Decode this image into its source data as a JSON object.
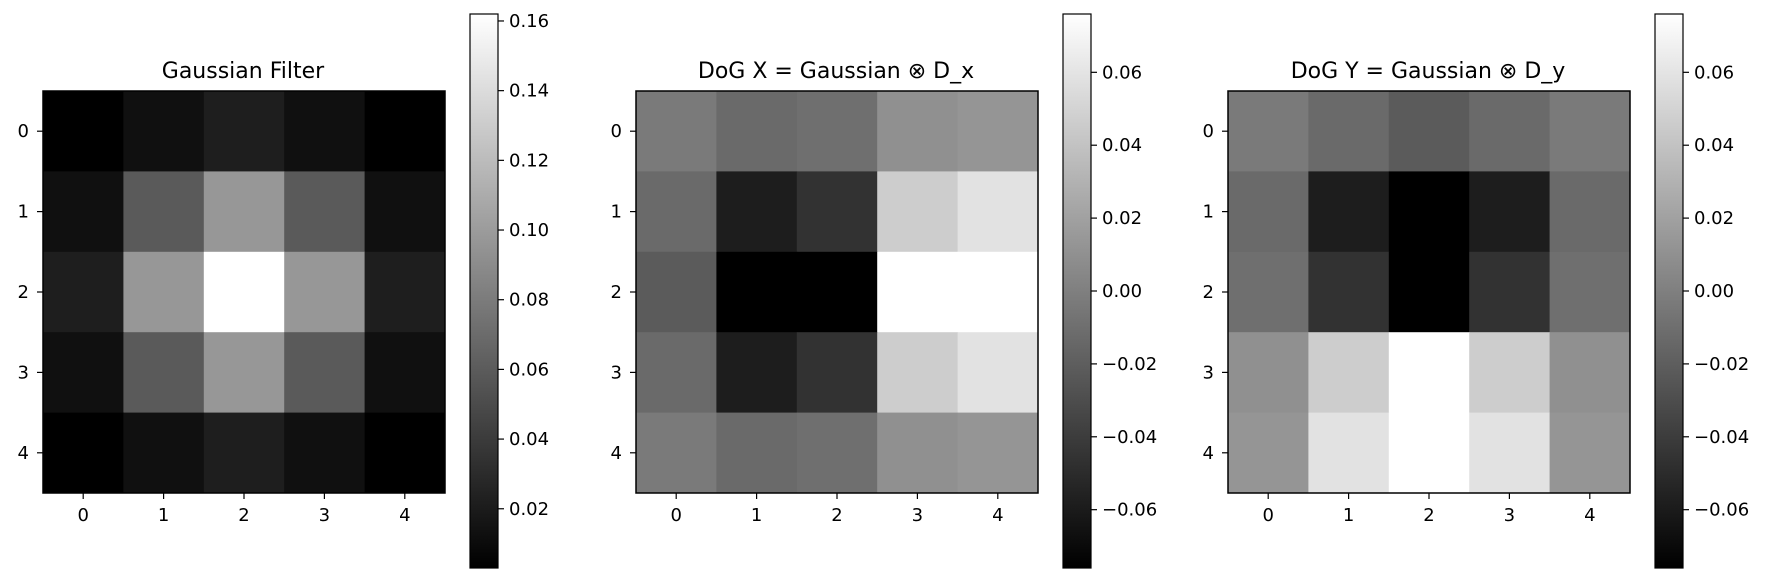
{
  "chart_data": [
    {
      "type": "heatmap",
      "title": "Gaussian Filter",
      "colormap": "gray",
      "x_ticks": [
        "0",
        "1",
        "2",
        "3",
        "4"
      ],
      "y_ticks": [
        "0",
        "1",
        "2",
        "3",
        "4"
      ],
      "values": [
        [
          0.003,
          0.013,
          0.022,
          0.013,
          0.003
        ],
        [
          0.013,
          0.059,
          0.097,
          0.059,
          0.013
        ],
        [
          0.022,
          0.097,
          0.162,
          0.097,
          0.022
        ],
        [
          0.013,
          0.059,
          0.097,
          0.059,
          0.013
        ],
        [
          0.003,
          0.013,
          0.022,
          0.013,
          0.003
        ]
      ],
      "colorbar": {
        "range": [
          0.003,
          0.162
        ],
        "ticks": [
          0.02,
          0.04,
          0.06,
          0.08,
          0.1,
          0.12,
          0.14,
          0.16
        ],
        "tick_labels": [
          "0.02",
          "0.04",
          "0.06",
          "0.08",
          "0.10",
          "0.12",
          "0.14",
          "0.16"
        ]
      }
    },
    {
      "type": "heatmap",
      "title": "DoG X = Gaussian ⊗ D_x",
      "colormap": "gray",
      "x_ticks": [
        "0",
        "1",
        "2",
        "3",
        "4"
      ],
      "y_ticks": [
        "0",
        "1",
        "2",
        "3",
        "4"
      ],
      "values": [
        [
          -0.003,
          -0.013,
          -0.01,
          0.01,
          0.013
        ],
        [
          -0.013,
          -0.059,
          -0.046,
          0.046,
          0.059
        ],
        [
          -0.022,
          -0.097,
          -0.076,
          0.076,
          0.097
        ],
        [
          -0.013,
          -0.059,
          -0.046,
          0.046,
          0.059
        ],
        [
          -0.003,
          -0.013,
          -0.01,
          0.01,
          0.013
        ]
      ],
      "colorbar": {
        "range": [
          -0.076,
          0.076
        ],
        "ticks": [
          -0.06,
          -0.04,
          -0.02,
          0.0,
          0.02,
          0.04,
          0.06
        ],
        "tick_labels": [
          "−0.06",
          "−0.04",
          "−0.02",
          "0.00",
          "0.02",
          "0.04",
          "0.06"
        ]
      }
    },
    {
      "type": "heatmap",
      "title": "DoG Y = Gaussian ⊗ D_y",
      "colormap": "gray",
      "x_ticks": [
        "0",
        "1",
        "2",
        "3",
        "4"
      ],
      "y_ticks": [
        "0",
        "1",
        "2",
        "3",
        "4"
      ],
      "values": [
        [
          -0.003,
          -0.013,
          -0.022,
          -0.013,
          -0.003
        ],
        [
          -0.013,
          -0.059,
          -0.097,
          -0.059,
          -0.013
        ],
        [
          -0.01,
          -0.046,
          -0.076,
          -0.046,
          -0.01
        ],
        [
          0.01,
          0.046,
          0.076,
          0.046,
          0.01
        ],
        [
          0.013,
          0.059,
          0.097,
          0.059,
          0.013
        ]
      ],
      "colorbar": {
        "range": [
          -0.076,
          0.076
        ],
        "ticks": [
          -0.06,
          -0.04,
          -0.02,
          0.0,
          0.02,
          0.04,
          0.06
        ],
        "tick_labels": [
          "−0.06",
          "−0.04",
          "−0.02",
          "0.00",
          "0.02",
          "0.04",
          "0.06"
        ]
      }
    }
  ]
}
